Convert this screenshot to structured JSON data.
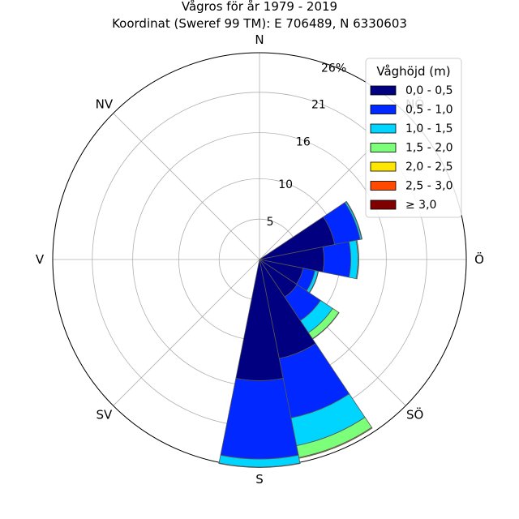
{
  "chart_data": {
    "type": "wind_rose",
    "title": "Vågros för år 1979 - 2019",
    "subtitle": "Koordinat (Sweref 99 TM): E 706489, N 6330603",
    "directions": [
      "N",
      "NV",
      "V",
      "SV",
      "S",
      "SÖ",
      "Ö",
      "NÖ"
    ],
    "radial_ticks": [
      "5",
      "10",
      "16",
      "21",
      "26%"
    ],
    "radial_tick_values": [
      5,
      10,
      15.7,
      20.7,
      25.6
    ],
    "rmax": 25.6,
    "legend_title": "Våghöjd (m)",
    "bins": [
      {
        "label": "0,0 - 0,5",
        "color": "#000080"
      },
      {
        "label": "0,5 - 1,0",
        "color": "#0028ff"
      },
      {
        "label": "1,0 - 1,5",
        "color": "#00d5ff"
      },
      {
        "label": "1,5 - 2,0",
        "color": "#7cff79"
      },
      {
        "label": "2,0 - 2,5",
        "color": "#ffe600"
      },
      {
        "label": "2,5 - 3,0",
        "color": "#ff4a00"
      },
      {
        "label": "≥ 3,0",
        "color": "#800000"
      }
    ],
    "sector_width_deg": 22.5,
    "sectors": [
      {
        "angle": 67.5,
        "values": [
          9.5,
          3.2,
          0.2,
          0.05,
          0,
          0,
          0
        ]
      },
      {
        "angle": 90,
        "values": [
          8.0,
          3.3,
          0.9,
          0.1,
          0,
          0,
          0
        ]
      },
      {
        "angle": 112.5,
        "values": [
          5.5,
          1.5,
          0.4,
          0.05,
          0,
          0,
          0
        ]
      },
      {
        "angle": 135,
        "values": [
          5.6,
          3.5,
          1.8,
          0.9,
          0.05,
          0,
          0
        ]
      },
      {
        "angle": 157.5,
        "values": [
          12.5,
          7.5,
          3.5,
          1.5,
          0.1,
          0,
          0
        ]
      },
      {
        "angle": 180,
        "values": [
          15.0,
          9.7,
          1.0,
          0.05,
          0,
          0,
          0
        ]
      }
    ]
  }
}
